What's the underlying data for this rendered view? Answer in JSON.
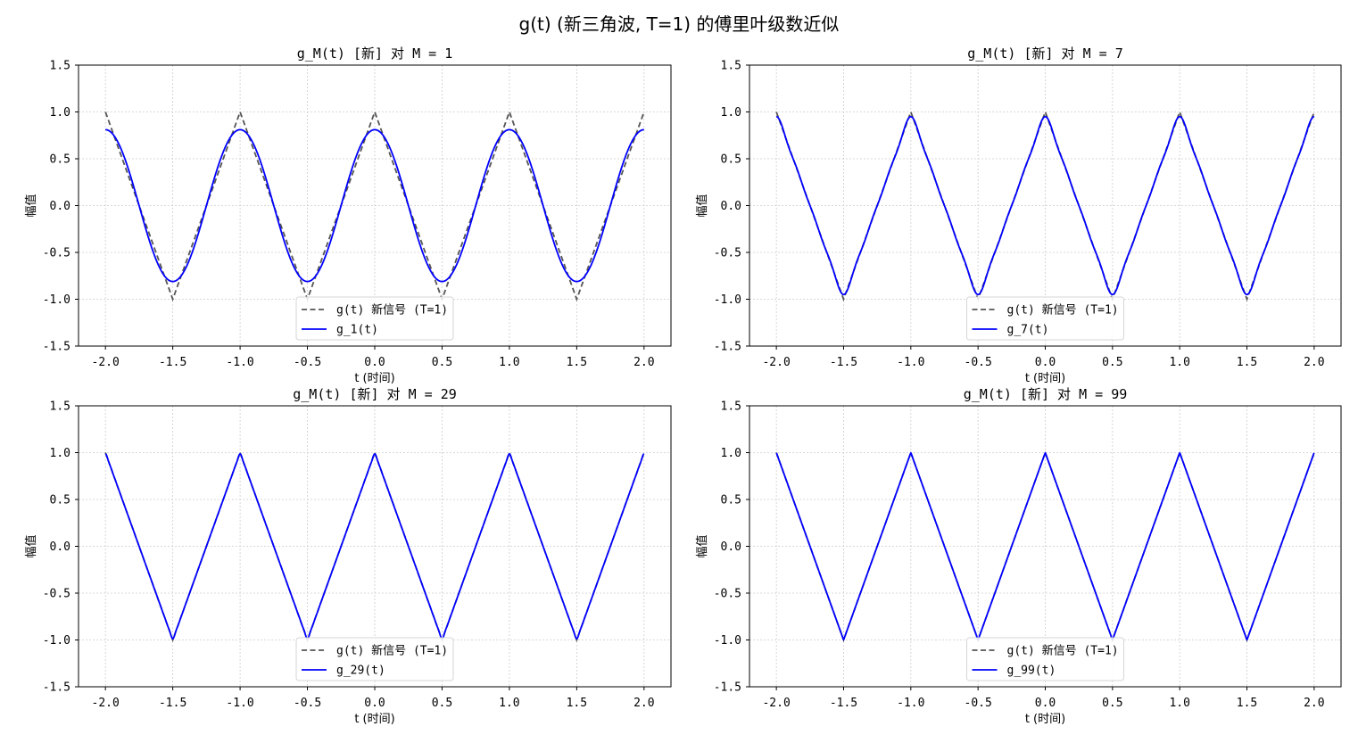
{
  "figure": {
    "suptitle": "g(t) (新三角波, T=1) 的傅里叶级数近似"
  },
  "colors": {
    "original": "#555555",
    "approx": "#0000ff",
    "grid": "#cccccc"
  },
  "chart_data": [
    {
      "type": "line",
      "title": "g_M(t) [新] 对 M = 1",
      "M": 1,
      "xlabel": "t (时间)",
      "ylabel": "幅值",
      "xlim": [
        -2.2,
        2.2
      ],
      "ylim": [
        -1.5,
        1.5
      ],
      "xticks": [
        "-2.0",
        "-1.5",
        "-1.0",
        "-0.5",
        "0.0",
        "0.5",
        "1.0",
        "1.5",
        "2.0"
      ],
      "yticks": [
        "1.5",
        "1.0",
        "0.5",
        "0.0",
        "-0.5",
        "-1.0",
        "-1.5"
      ],
      "grid": true,
      "legend_position": "lower center",
      "series": [
        {
          "name": "g(t) 新信号 (T=1)",
          "style": "dashed",
          "signal": "triangle wave, period 1, peaks 1 at integer t, troughs -1 at half-integer t",
          "x_range": [
            -2,
            2
          ]
        },
        {
          "name": "g_1(t)",
          "style": "solid",
          "signal": "Fourier approximation with M = 1",
          "x_range": [
            -2,
            2
          ],
          "peak": 0.81
        }
      ]
    },
    {
      "type": "line",
      "title": "g_M(t) [新] 对 M = 7",
      "M": 7,
      "xlabel": "t (时间)",
      "ylabel": "幅值",
      "xlim": [
        -2.2,
        2.2
      ],
      "ylim": [
        -1.5,
        1.5
      ],
      "xticks": [
        "-2.0",
        "-1.5",
        "-1.0",
        "-0.5",
        "0.0",
        "0.5",
        "1.0",
        "1.5",
        "2.0"
      ],
      "yticks": [
        "1.5",
        "1.0",
        "0.5",
        "0.0",
        "-0.5",
        "-1.0",
        "-1.5"
      ],
      "grid": true,
      "legend_position": "lower center",
      "series": [
        {
          "name": "g(t) 新信号 (T=1)",
          "style": "dashed",
          "signal": "triangle wave, period 1",
          "x_range": [
            -2,
            2
          ]
        },
        {
          "name": "g_7(t)",
          "style": "solid",
          "signal": "Fourier approximation with M = 7",
          "x_range": [
            -2,
            2
          ],
          "peak": 0.96
        }
      ]
    },
    {
      "type": "line",
      "title": "g_M(t) [新] 对 M = 29",
      "M": 29,
      "xlabel": "t (时间)",
      "ylabel": "幅值",
      "xlim": [
        -2.2,
        2.2
      ],
      "ylim": [
        -1.5,
        1.5
      ],
      "xticks": [
        "-2.0",
        "-1.5",
        "-1.0",
        "-0.5",
        "0.0",
        "0.5",
        "1.0",
        "1.5",
        "2.0"
      ],
      "yticks": [
        "1.5",
        "1.0",
        "0.5",
        "0.0",
        "-0.5",
        "-1.0",
        "-1.5"
      ],
      "grid": true,
      "legend_position": "lower center",
      "series": [
        {
          "name": "g(t) 新信号 (T=1)",
          "style": "dashed",
          "signal": "triangle wave, period 1",
          "x_range": [
            -2,
            2
          ]
        },
        {
          "name": "g_29(t)",
          "style": "solid",
          "signal": "Fourier approximation with M = 29",
          "x_range": [
            -2,
            2
          ],
          "peak": 0.99
        }
      ]
    },
    {
      "type": "line",
      "title": "g_M(t) [新] 对 M = 99",
      "M": 99,
      "xlabel": "t (时间)",
      "ylabel": "幅值",
      "xlim": [
        -2.2,
        2.2
      ],
      "ylim": [
        -1.5,
        1.5
      ],
      "xticks": [
        "-2.0",
        "-1.5",
        "-1.0",
        "-0.5",
        "0.0",
        "0.5",
        "1.0",
        "1.5",
        "2.0"
      ],
      "yticks": [
        "1.5",
        "1.0",
        "0.5",
        "0.0",
        "-0.5",
        "-1.0",
        "-1.5"
      ],
      "grid": true,
      "legend_position": "lower center",
      "series": [
        {
          "name": "g(t) 新信号 (T=1)",
          "style": "dashed",
          "signal": "triangle wave, period 1",
          "x_range": [
            -2,
            2
          ]
        },
        {
          "name": "g_99(t)",
          "style": "solid",
          "signal": "Fourier approximation with M = 99",
          "x_range": [
            -2,
            2
          ],
          "peak": 1.0
        }
      ]
    }
  ]
}
